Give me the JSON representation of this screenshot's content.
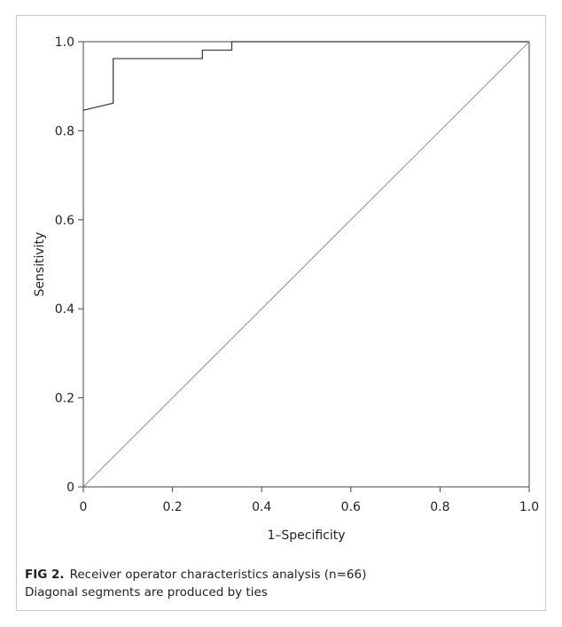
{
  "chart_data": {
    "type": "line",
    "title": "",
    "xlabel": "1–Specificity",
    "ylabel": "Sensitivity",
    "xlim": [
      0,
      1
    ],
    "ylim": [
      0,
      1
    ],
    "x_ticks": [
      0,
      0.2,
      0.4,
      0.6,
      0.8,
      1.0
    ],
    "x_tick_labels": [
      "0",
      "0.2",
      "0.4",
      "0.6",
      "0.8",
      "1.0"
    ],
    "y_ticks": [
      0,
      0.2,
      0.4,
      0.6,
      0.8,
      1.0
    ],
    "y_tick_labels": [
      "0",
      "0.2",
      "0.4",
      "0.6",
      "0.8",
      "1.0"
    ],
    "grid": false,
    "series": [
      {
        "name": "",
        "color": "#333333",
        "x": [
          0,
          0.067,
          0.067,
          0.267,
          0.267,
          0.333,
          0.333,
          1.0
        ],
        "y": [
          0.846,
          0.862,
          0.962,
          0.962,
          0.981,
          0.981,
          1.0,
          1.0
        ]
      },
      {
        "name": "",
        "color": "#888888",
        "x": [
          0,
          1
        ],
        "y": [
          0,
          1
        ]
      }
    ]
  },
  "caption": {
    "fig_label": "FIG 2.",
    "title": "Receiver operator characteristics analysis (n=66)",
    "note": "Diagonal segments are produced by ties"
  }
}
